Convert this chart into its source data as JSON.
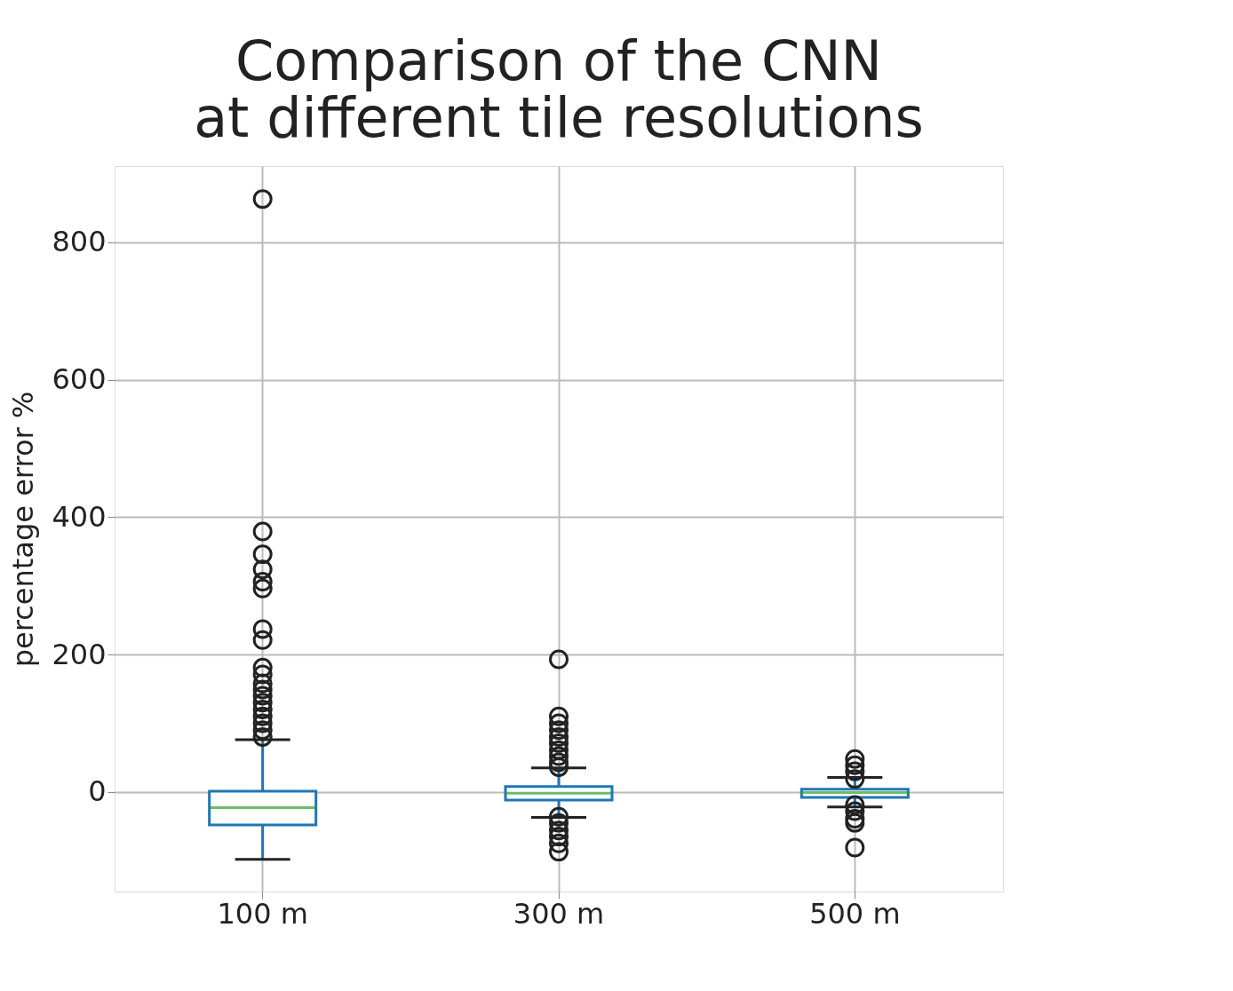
{
  "chart_data": {
    "type": "box",
    "title": "Comparison of the CNN\nat different tile resolutions",
    "ylabel": "percentage error %",
    "categories": [
      "100 m",
      "300 m",
      "500 m"
    ],
    "series": [
      {
        "color": "#1f77b4",
        "boxes": [
          {
            "low": -98,
            "q1": -48,
            "median": -23,
            "q3": 1,
            "high": 76,
            "outliers": [
              863,
              379,
              346,
              324,
              306,
              296,
              237,
              221,
              181,
              171,
              158,
              149,
              140,
              130,
              120,
              110,
              100,
              90,
              80
            ]
          },
          {
            "low": -37,
            "q1": -12,
            "median": -2,
            "q3": 8,
            "high": 35,
            "outliers": [
              193,
              110,
              100,
              90,
              80,
              71,
              61,
              52,
              43,
              36,
              -36,
              -45,
              -56,
              -65,
              -75,
              -87
            ]
          },
          {
            "low": -22,
            "q1": -8,
            "median": -1,
            "q3": 4,
            "high": 21,
            "outliers": [
              48,
              39,
              30,
              19,
              -19,
              -28,
              -39,
              -45,
              -81
            ]
          }
        ]
      }
    ],
    "ylim": [
      -145,
      911
    ],
    "yticks": [
      0,
      200,
      400,
      600,
      800
    ],
    "grid": true
  }
}
